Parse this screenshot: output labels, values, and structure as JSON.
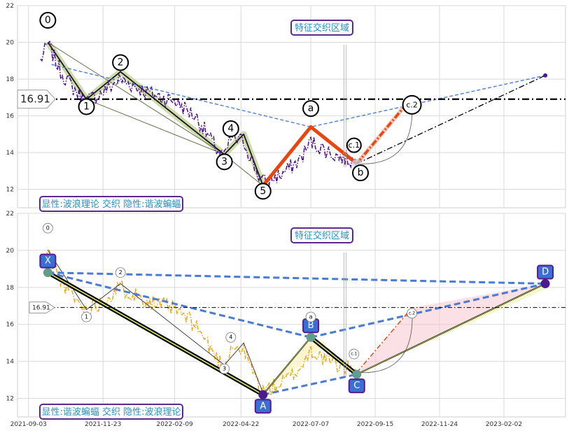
{
  "chart_data": [
    {
      "type": "line",
      "panel": "top",
      "ylim": [
        11,
        22
      ],
      "yticks": [
        "12",
        "14",
        "16",
        "18",
        "20",
        "22"
      ],
      "hline": {
        "value": 16.91,
        "label": "16.91"
      },
      "region_label": "特征交织区域",
      "caption": "显性:波浪理论 交织 隐性:谐波蝙蝠",
      "wave_labels": [
        {
          "label": "0",
          "x": "2021-09-24",
          "y": 21.2
        },
        {
          "label": "1",
          "x": "2021-11-05",
          "y": 16.5
        },
        {
          "label": "2",
          "x": "2021-12-12",
          "y": 18.9
        },
        {
          "label": "3",
          "x": "2022-04-04",
          "y": 13.5
        },
        {
          "label": "4",
          "x": "2022-04-11",
          "y": 15.3
        },
        {
          "label": "5",
          "x": "2022-05-16",
          "y": 11.9
        },
        {
          "label": "a",
          "x": "2022-07-07",
          "y": 16.4
        },
        {
          "label": "c.1",
          "x": "2022-08-23",
          "y": 14.4
        },
        {
          "label": "b",
          "x": "2022-08-30",
          "y": 12.9
        },
        {
          "label": "c.2",
          "x": "2022-10-25",
          "y": 16.6
        }
      ]
    },
    {
      "type": "line",
      "panel": "bottom",
      "ylim": [
        11,
        22
      ],
      "yticks": [
        "12",
        "14",
        "16",
        "18",
        "20",
        "22"
      ],
      "xticks": [
        "2021-09-03",
        "2021-11-23",
        "2022-02-09",
        "2022-04-22",
        "2022-07-07",
        "2022-09-15",
        "2022-11-24",
        "2023-02-02"
      ],
      "hline": {
        "value": 16.91,
        "label": "16.91"
      },
      "region_label": "特征交织区域",
      "caption": "显性:谐波蝙蝠 交织 隐性:波浪理论",
      "harmonic_points": [
        {
          "label": "X",
          "x": "2021-09-24",
          "y": 18.8
        },
        {
          "label": "A",
          "x": "2022-05-16",
          "y": 12.2
        },
        {
          "label": "B",
          "x": "2022-07-07",
          "y": 15.3
        },
        {
          "label": "C",
          "x": "2022-08-26",
          "y": 13.3
        },
        {
          "label": "D",
          "x": "2023-03-19",
          "y": 18.2
        }
      ],
      "wave_labels": [
        {
          "label": "0",
          "x": "2021-09-24",
          "y": 21.2
        },
        {
          "label": "1",
          "x": "2021-11-05",
          "y": 16.4
        },
        {
          "label": "2",
          "x": "2021-12-12",
          "y": 18.8
        },
        {
          "label": "3",
          "x": "2022-04-04",
          "y": 13.6
        },
        {
          "label": "4",
          "x": "2022-04-11",
          "y": 15.3
        },
        {
          "label": "a",
          "x": "2022-07-07",
          "y": 16.4
        },
        {
          "label": "c.1",
          "x": "2022-08-23",
          "y": 14.4
        },
        {
          "label": "c.2",
          "x": "2022-10-25",
          "y": 16.6
        }
      ]
    }
  ]
}
